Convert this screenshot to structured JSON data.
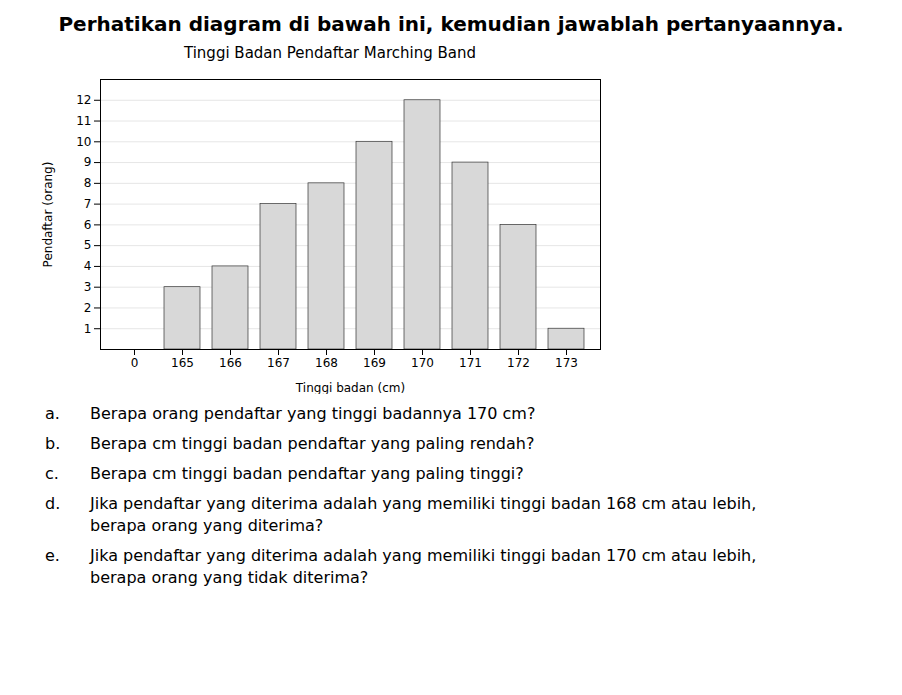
{
  "chart_data": {
    "type": "bar",
    "title": "Perhatikan diagram di bawah ini, kemudian jawablah pertanyaannya.",
    "subtitle": "Tinggi Badan Pendaftar Marching Band",
    "xlabel": "Tinggi badan (cm)",
    "ylabel": "Pendaftar (orang)",
    "categories": [
      0,
      165,
      166,
      167,
      168,
      169,
      170,
      171,
      172,
      173
    ],
    "values": [
      null,
      3,
      4,
      7,
      8,
      10,
      12,
      9,
      6,
      1
    ],
    "color": "#d8d8d8",
    "ylim": [
      0,
      13
    ],
    "yticks": [
      1,
      2,
      3,
      4,
      5,
      6,
      7,
      8,
      9,
      10,
      11,
      12
    ],
    "grid": true,
    "annotations": [
      {
        "label": "a.",
        "lines": [
          "Berapa orang pendaftar yang tinggi badannya 170 cm?"
        ]
      },
      {
        "label": "b.",
        "lines": [
          "Berapa cm tinggi badan pendaftar yang paling rendah?"
        ]
      },
      {
        "label": "c.",
        "lines": [
          "Berapa cm tinggi badan pendaftar yang paling tinggi?"
        ]
      },
      {
        "label": "d.",
        "lines": [
          "Jika pendaftar yang diterima adalah yang memiliki tinggi badan 168 cm atau lebih,",
          "berapa orang yang diterima?"
        ]
      },
      {
        "label": "e.",
        "lines": [
          "Jika pendaftar yang diterima adalah yang memiliki tinggi badan 170 cm atau lebih,",
          "berapa orang yang tidak diterima?"
        ]
      }
    ]
  }
}
